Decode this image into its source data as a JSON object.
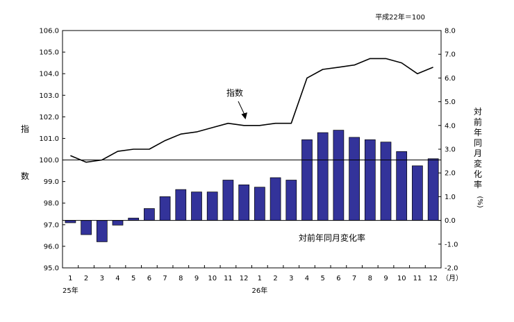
{
  "chart_data": {
    "type": "bar+line",
    "base_note": "平成22年＝100",
    "left_axis": {
      "label_chars": [
        "指",
        "数"
      ],
      "range": [
        95.0,
        106.0
      ],
      "ticks": [
        "95.0",
        "96.0",
        "97.0",
        "98.0",
        "99.0",
        "100.0",
        "101.0",
        "102.0",
        "103.0",
        "104.0",
        "105.0",
        "106.0"
      ]
    },
    "right_axis": {
      "label_chars": [
        "対",
        "前",
        "年",
        "同",
        "月",
        "変",
        "化",
        "率",
        "(%)"
      ],
      "range": [
        -2.0,
        8.0
      ],
      "ticks": [
        "-2.0",
        "-1.0",
        "0.0",
        "1.0",
        "2.0",
        "3.0",
        "4.0",
        "5.0",
        "6.0",
        "7.0",
        "8.0"
      ]
    },
    "x_axis": {
      "month_labels": [
        "1",
        "2",
        "3",
        "4",
        "5",
        "6",
        "7",
        "8",
        "9",
        "10",
        "11",
        "12",
        "1",
        "2",
        "3",
        "4",
        "5",
        "6",
        "7",
        "8",
        "9",
        "10",
        "11",
        "12"
      ],
      "unit": "（月）",
      "year_labels": [
        {
          "text": "25年",
          "index": 0
        },
        {
          "text": "26年",
          "index": 12
        }
      ]
    },
    "series": [
      {
        "name": "指数",
        "type": "line",
        "axis": "left",
        "color": "#000000",
        "values": [
          100.2,
          99.9,
          100.0,
          100.4,
          100.5,
          100.5,
          100.9,
          101.2,
          101.3,
          101.5,
          101.7,
          101.6,
          101.6,
          101.7,
          101.7,
          103.8,
          104.2,
          104.3,
          104.4,
          104.7,
          104.7,
          104.5,
          104.0,
          104.3
        ]
      },
      {
        "name": "対前年同月変化率",
        "type": "bar",
        "axis": "right",
        "color": "#33339A",
        "values": [
          -0.1,
          -0.6,
          -0.9,
          -0.2,
          0.1,
          0.5,
          1.0,
          1.3,
          1.2,
          1.2,
          1.7,
          1.5,
          1.4,
          1.8,
          1.7,
          3.4,
          3.7,
          3.8,
          3.5,
          3.4,
          3.3,
          2.9,
          2.3,
          2.6
        ]
      }
    ],
    "annotations": [
      {
        "text": "指数",
        "series": "指数"
      },
      {
        "text": "対前年同月変化率",
        "series": "対前年同月変化率"
      }
    ],
    "reference_line": {
      "axis": "left",
      "value": 100.0
    }
  }
}
